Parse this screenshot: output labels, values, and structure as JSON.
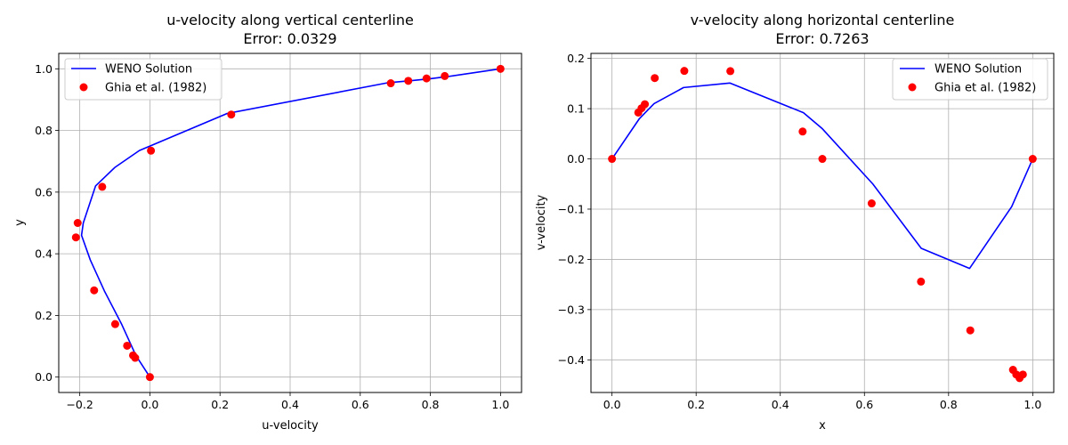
{
  "chart_data": [
    {
      "type": "line",
      "title": "u-velocity along vertical centerline",
      "subtitle": "Error: 0.0329",
      "xlabel": "u-velocity",
      "ylabel": "y",
      "xlim": [
        -0.26,
        1.06
      ],
      "ylim": [
        -0.05,
        1.05
      ],
      "xticks": [
        -0.2,
        0.0,
        0.2,
        0.4,
        0.6,
        0.8,
        1.0
      ],
      "xtick_labels": [
        "−0.2",
        "0.0",
        "0.2",
        "0.4",
        "0.6",
        "0.8",
        "1.0"
      ],
      "yticks": [
        0.0,
        0.2,
        0.4,
        0.6,
        0.8,
        1.0
      ],
      "ytick_labels": [
        "0.0",
        "0.2",
        "0.4",
        "0.6",
        "0.8",
        "1.0"
      ],
      "grid": true,
      "legend_position": "top-left",
      "series": [
        {
          "name": "WENO Solution",
          "kind": "line",
          "color": "#0000ff",
          "x": [
            0.0,
            -0.04,
            -0.08,
            -0.13,
            -0.17,
            -0.195,
            -0.19,
            -0.155,
            -0.1,
            -0.03,
            0.22,
            0.68,
            0.75,
            0.8,
            0.85,
            1.0
          ],
          "y": [
            0.0,
            0.07,
            0.17,
            0.28,
            0.38,
            0.46,
            0.5,
            0.62,
            0.68,
            0.735,
            0.855,
            0.955,
            0.962,
            0.968,
            0.975,
            1.0
          ]
        },
        {
          "name": "Ghia et al. (1982)",
          "kind": "scatter",
          "color": "#ff0000",
          "x": [
            0.0,
            -0.042,
            -0.048,
            -0.065,
            -0.099,
            -0.159,
            -0.211,
            -0.206,
            -0.136,
            0.003,
            0.232,
            0.687,
            0.737,
            0.789,
            0.841,
            1.0
          ],
          "y": [
            0.0,
            0.0625,
            0.0703,
            0.1016,
            0.1719,
            0.2813,
            0.4531,
            0.5,
            0.6172,
            0.7344,
            0.8516,
            0.9531,
            0.9609,
            0.9688,
            0.9766,
            1.0
          ]
        }
      ]
    },
    {
      "type": "line",
      "title": "v-velocity along horizontal centerline",
      "subtitle": "Error: 0.7263",
      "xlabel": "x",
      "ylabel": "v-velocity",
      "xlim": [
        -0.05,
        1.05
      ],
      "ylim": [
        -0.465,
        0.21
      ],
      "xticks": [
        0.0,
        0.2,
        0.4,
        0.6,
        0.8,
        1.0
      ],
      "xtick_labels": [
        "0.0",
        "0.2",
        "0.4",
        "0.6",
        "0.8",
        "1.0"
      ],
      "yticks": [
        -0.4,
        -0.3,
        -0.2,
        -0.1,
        0.0,
        0.1,
        0.2
      ],
      "ytick_labels": [
        "−0.4",
        "−0.3",
        "−0.2",
        "−0.1",
        "0.0",
        "0.1",
        "0.2"
      ],
      "grid": true,
      "legend_position": "top-right",
      "series": [
        {
          "name": "WENO Solution",
          "kind": "line",
          "color": "#0000ff",
          "x": [
            0.0,
            0.065,
            0.1,
            0.17,
            0.28,
            0.455,
            0.5,
            0.62,
            0.735,
            0.85,
            0.95,
            1.0
          ],
          "y": [
            0.0,
            0.08,
            0.11,
            0.142,
            0.151,
            0.092,
            0.06,
            -0.05,
            -0.178,
            -0.218,
            -0.095,
            0.0
          ]
        },
        {
          "name": "Ghia et al. (1982)",
          "kind": "scatter",
          "color": "#ff0000",
          "x": [
            0.0,
            0.0625,
            0.0703,
            0.0781,
            0.1016,
            0.1719,
            0.2813,
            0.4531,
            0.5,
            0.6172,
            0.7344,
            0.8516,
            0.9531,
            0.9609,
            0.9688,
            0.9766,
            1.0
          ],
          "y": [
            0.0,
            0.0923,
            0.1009,
            0.1089,
            0.1609,
            0.1752,
            0.1747,
            0.0545,
            0.0,
            -0.0886,
            -0.2443,
            -0.3414,
            -0.4199,
            -0.4293,
            -0.4364,
            -0.4293,
            0.0
          ]
        }
      ]
    }
  ]
}
